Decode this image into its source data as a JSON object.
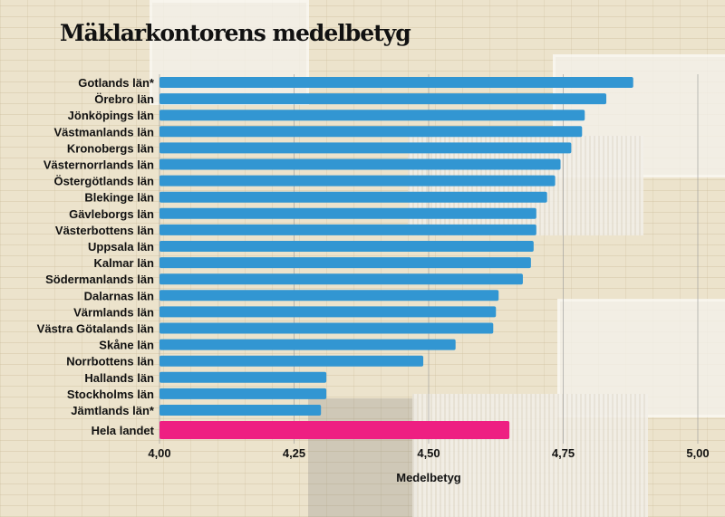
{
  "chart_data": {
    "type": "bar",
    "orientation": "horizontal",
    "title": "Mäklarkontorens medelbetyg",
    "xlabel": "Medelbetyg",
    "ylabel": "",
    "xlim": [
      4.0,
      5.0
    ],
    "xticks": [
      "4,00",
      "4,25",
      "4,50",
      "4,75",
      "5,00"
    ],
    "xtick_values": [
      4.0,
      4.25,
      4.5,
      4.75,
      5.0
    ],
    "grid": true,
    "categories": [
      "Gotlands län*",
      "Örebro län",
      "Jönköpings län",
      "Västmanlands län",
      "Kronobergs län",
      "Västernorrlands län",
      "Östergötlands län",
      "Blekinge län",
      "Gävleborgs län",
      "Västerbottens län",
      "Uppsala län",
      "Kalmar län",
      "Södermanlands län",
      "Dalarnas län",
      "Värmlands län",
      "Västra Götalands län",
      "Skåne län",
      "Norrbottens län",
      "Hallands län",
      "Stockholms län",
      "Jämtlands län*",
      "Hela landet"
    ],
    "values": [
      4.88,
      4.83,
      4.79,
      4.785,
      4.765,
      4.745,
      4.735,
      4.72,
      4.7,
      4.7,
      4.695,
      4.69,
      4.675,
      4.63,
      4.625,
      4.62,
      4.55,
      4.49,
      4.31,
      4.31,
      4.3,
      4.65
    ],
    "colors": {
      "county": "#3296d2",
      "national": "#ee1f82"
    }
  }
}
